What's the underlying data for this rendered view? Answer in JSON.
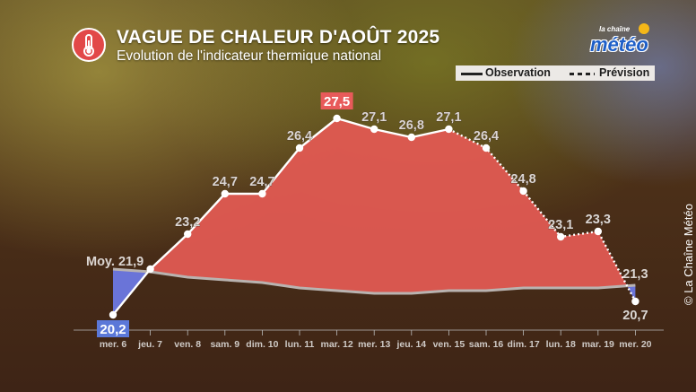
{
  "header": {
    "title": "VAGUE DE CHALEUR D'AOÛT 2025",
    "subtitle": "Evolution de l'indicateur thermique national"
  },
  "legend": {
    "observation": "Observation",
    "prevision": "Prévision"
  },
  "logo": {
    "small": "la chaîne",
    "main": "météo"
  },
  "credit": "© La Chaîne Météo",
  "colors": {
    "heat_fill": "#e05a52",
    "cool_fill": "#6a74d8",
    "baseline": "#b9b3b0",
    "max_badge": "#e85a5a",
    "min_badge": "#5b78d8"
  },
  "chart_data": {
    "type": "area",
    "categories": [
      "mer. 6",
      "jeu. 7",
      "ven. 8",
      "sam. 9",
      "dim. 10",
      "lun. 11",
      "mar. 12",
      "mer. 13",
      "jeu. 14",
      "ven. 15",
      "sam. 16",
      "dim. 17",
      "lun. 18",
      "mar. 19",
      "mer. 20"
    ],
    "ylim": [
      19.0,
      29.0
    ],
    "series": [
      {
        "name": "Observation",
        "style": "solid",
        "values": [
          20.2,
          21.9,
          23.2,
          24.7,
          24.7,
          26.4,
          27.5,
          27.1,
          26.8,
          27.1,
          null,
          null,
          null,
          null,
          null
        ]
      },
      {
        "name": "Prévision",
        "style": "dotted",
        "values": [
          null,
          null,
          null,
          null,
          null,
          null,
          null,
          null,
          null,
          27.1,
          26.4,
          24.8,
          23.1,
          23.3,
          20.7
        ]
      },
      {
        "name": "",
        "values": [
          21.9,
          21.8,
          21.6,
          21.5,
          21.4,
          21.2,
          21.1,
          21.0,
          21.0,
          21.1,
          21.1,
          21.2,
          21.2,
          21.2,
          21.3
        ]
      }
    ],
    "point_labels": [
      "20,2",
      "21,9",
      "23,2",
      "24,7",
      "24,7",
      "26,4",
      "27,5",
      "27,1",
      "26,8",
      "27,1",
      "26,4",
      "24,8",
      "23,1",
      "23,3",
      "20,7"
    ],
    "normal_start_label": "Moy. 21,9",
    "normal_end_label": "21,3",
    "max_index": 6,
    "min_index": 0
  }
}
